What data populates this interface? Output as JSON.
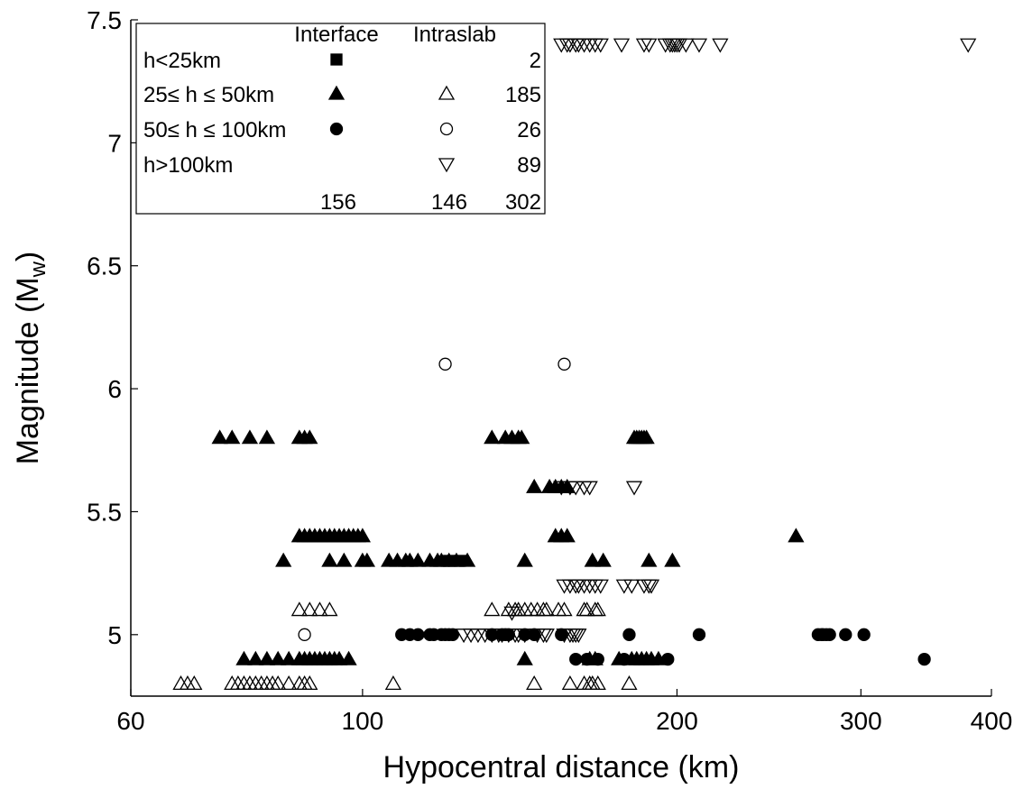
{
  "chart_data": {
    "type": "scatter",
    "xlabel": "Hypocentral distance (km)",
    "ylabel_main": "Magnitude (M",
    "ylabel_sub": "w",
    "ylabel_end": ")",
    "x_scale": "log",
    "xlim": [
      60,
      400
    ],
    "ylim": [
      4.75,
      7.5
    ],
    "x_ticks": [
      60,
      100,
      200,
      300,
      400
    ],
    "x_tick_labels": [
      "60",
      "100",
      "200",
      "300",
      "400"
    ],
    "y_ticks": [
      5,
      5.5,
      6,
      6.5,
      7,
      7.5
    ],
    "y_tick_labels": [
      "5",
      "5.5",
      "6",
      "6.5",
      "7",
      "7.5"
    ],
    "grid": false,
    "legend": {
      "position": "top-left",
      "col_headers": [
        "Interface",
        "Intraslab"
      ],
      "rows": [
        {
          "label": "h<25km",
          "interface_marker": "filled-square",
          "intraslab_marker": "",
          "count": "2"
        },
        {
          "label": "25≤ h ≤ 50km",
          "interface_marker": "filled-triangle-up",
          "intraslab_marker": "open-triangle-up",
          "count": "185"
        },
        {
          "label": "50≤ h ≤ 100km",
          "interface_marker": "filled-circle",
          "intraslab_marker": "open-circle",
          "count": "26"
        },
        {
          "label": "h>100km",
          "interface_marker": "",
          "intraslab_marker": "open-triangle-down",
          "count": "89"
        }
      ],
      "totals": [
        "156",
        "146",
        "302"
      ]
    },
    "series": [
      {
        "marker": "filled-triangle-up",
        "points": [
          [
            73,
            5.8
          ],
          [
            75,
            5.8
          ],
          [
            78,
            5.8
          ],
          [
            81,
            5.8
          ],
          [
            87,
            5.8
          ],
          [
            88,
            5.8
          ],
          [
            89,
            5.8
          ],
          [
            133,
            5.8
          ],
          [
            137,
            5.8
          ],
          [
            139,
            5.8
          ],
          [
            141,
            5.8
          ],
          [
            142,
            5.8
          ],
          [
            182,
            5.8
          ],
          [
            183,
            5.8
          ],
          [
            184,
            5.8
          ],
          [
            185,
            5.8
          ],
          [
            186,
            5.8
          ],
          [
            187,
            5.8
          ],
          [
            146,
            5.6
          ],
          [
            151,
            5.6
          ],
          [
            153,
            5.6
          ],
          [
            155,
            5.6
          ],
          [
            157,
            5.6
          ],
          [
            87,
            5.4
          ],
          [
            88,
            5.4
          ],
          [
            89,
            5.4
          ],
          [
            90,
            5.4
          ],
          [
            91,
            5.4
          ],
          [
            92,
            5.4
          ],
          [
            93,
            5.4
          ],
          [
            94,
            5.4
          ],
          [
            95,
            5.4
          ],
          [
            96,
            5.4
          ],
          [
            97,
            5.4
          ],
          [
            98,
            5.4
          ],
          [
            99,
            5.4
          ],
          [
            100,
            5.4
          ],
          [
            153,
            5.4
          ],
          [
            155,
            5.4
          ],
          [
            157,
            5.4
          ],
          [
            260,
            5.4
          ],
          [
            84,
            5.3
          ],
          [
            93,
            5.3
          ],
          [
            96,
            5.3
          ],
          [
            100,
            5.3
          ],
          [
            101,
            5.3
          ],
          [
            106,
            5.3
          ],
          [
            108,
            5.3
          ],
          [
            110,
            5.3
          ],
          [
            111,
            5.3
          ],
          [
            113,
            5.3
          ],
          [
            116,
            5.3
          ],
          [
            118,
            5.3
          ],
          [
            119,
            5.3
          ],
          [
            121,
            5.3
          ],
          [
            123,
            5.3
          ],
          [
            126,
            5.3
          ],
          [
            143,
            5.3
          ],
          [
            166,
            5.3
          ],
          [
            170,
            5.3
          ],
          [
            188,
            5.3
          ],
          [
            198,
            5.3
          ],
          [
            77,
            4.9
          ],
          [
            79,
            4.9
          ],
          [
            81,
            4.9
          ],
          [
            83,
            4.9
          ],
          [
            85,
            4.9
          ],
          [
            87,
            4.9
          ],
          [
            88,
            4.9
          ],
          [
            89,
            4.9
          ],
          [
            90,
            4.9
          ],
          [
            91,
            4.9
          ],
          [
            92,
            4.9
          ],
          [
            93,
            4.9
          ],
          [
            94,
            4.9
          ],
          [
            95,
            4.9
          ],
          [
            97,
            4.9
          ],
          [
            143,
            4.9
          ],
          [
            165,
            4.9
          ],
          [
            167,
            4.9
          ],
          [
            176,
            4.9
          ],
          [
            181,
            4.9
          ],
          [
            183,
            4.9
          ],
          [
            185,
            4.9
          ],
          [
            187,
            4.9
          ],
          [
            189,
            4.9
          ],
          [
            192,
            4.9
          ]
        ]
      },
      {
        "marker": "filled-square",
        "points": [
          [
            121,
            5.3
          ],
          [
            124,
            5.3
          ]
        ]
      },
      {
        "marker": "filled-circle",
        "points": [
          [
            109,
            5
          ],
          [
            111,
            5
          ],
          [
            113,
            5
          ],
          [
            116,
            5
          ],
          [
            117,
            5
          ],
          [
            119,
            5
          ],
          [
            120,
            5
          ],
          [
            121,
            5
          ],
          [
            122,
            5
          ],
          [
            133,
            5
          ],
          [
            136,
            5
          ],
          [
            137,
            5
          ],
          [
            138,
            5
          ],
          [
            143,
            5
          ],
          [
            146,
            5
          ],
          [
            155,
            5
          ],
          [
            180,
            5
          ],
          [
            210,
            5
          ],
          [
            273,
            5
          ],
          [
            275,
            5
          ],
          [
            276,
            5
          ],
          [
            278,
            5
          ],
          [
            280,
            5
          ],
          [
            290,
            5
          ],
          [
            302,
            5
          ],
          [
            160,
            4.9
          ],
          [
            164,
            4.9
          ],
          [
            168,
            4.9
          ],
          [
            178,
            4.9
          ],
          [
            196,
            4.9
          ],
          [
            345,
            4.9
          ]
        ]
      },
      {
        "marker": "open-triangle-up",
        "points": [
          [
            67,
            4.8
          ],
          [
            68,
            4.8
          ],
          [
            69,
            4.8
          ],
          [
            75,
            4.8
          ],
          [
            76,
            4.8
          ],
          [
            77,
            4.8
          ],
          [
            78,
            4.8
          ],
          [
            79,
            4.8
          ],
          [
            80,
            4.8
          ],
          [
            81,
            4.8
          ],
          [
            82,
            4.8
          ],
          [
            83,
            4.8
          ],
          [
            85,
            4.8
          ],
          [
            87,
            4.8
          ],
          [
            88,
            4.8
          ],
          [
            89,
            4.8
          ],
          [
            107,
            4.8
          ],
          [
            146,
            4.8
          ],
          [
            158,
            4.8
          ],
          [
            163,
            4.8
          ],
          [
            165,
            4.8
          ],
          [
            166,
            4.8
          ],
          [
            168,
            4.8
          ],
          [
            180,
            4.8
          ],
          [
            87,
            5.1
          ],
          [
            89,
            5.1
          ],
          [
            91,
            5.1
          ],
          [
            93,
            5.1
          ],
          [
            133,
            5.1
          ],
          [
            138,
            5.1
          ],
          [
            140,
            5.1
          ],
          [
            141,
            5.1
          ],
          [
            143,
            5.1
          ],
          [
            145,
            5.1
          ],
          [
            147,
            5.1
          ],
          [
            149,
            5.1
          ],
          [
            150,
            5.1
          ],
          [
            154,
            5.1
          ],
          [
            156,
            5.1
          ],
          [
            163,
            5.1
          ],
          [
            164,
            5.1
          ],
          [
            167,
            5.1
          ],
          [
            168,
            5.1
          ]
        ]
      },
      {
        "marker": "open-circle",
        "points": [
          [
            88,
            5
          ],
          [
            120,
            6.1
          ],
          [
            156,
            6.1
          ]
        ]
      },
      {
        "marker": "open-triangle-down",
        "points": [
          [
            155,
            7.4
          ],
          [
            157,
            7.4
          ],
          [
            158,
            7.4
          ],
          [
            160,
            7.4
          ],
          [
            161,
            7.4
          ],
          [
            163,
            7.4
          ],
          [
            165,
            7.4
          ],
          [
            167,
            7.4
          ],
          [
            169,
            7.4
          ],
          [
            177,
            7.4
          ],
          [
            186,
            7.4
          ],
          [
            188,
            7.4
          ],
          [
            195,
            7.4
          ],
          [
            197,
            7.4
          ],
          [
            198,
            7.4
          ],
          [
            199,
            7.4
          ],
          [
            200,
            7.4
          ],
          [
            201,
            7.4
          ],
          [
            204,
            7.4
          ],
          [
            210,
            7.4
          ],
          [
            220,
            7.4
          ],
          [
            380,
            7.4
          ],
          [
            155,
            5.6
          ],
          [
            158,
            5.6
          ],
          [
            160,
            5.6
          ],
          [
            163,
            5.6
          ],
          [
            165,
            5.6
          ],
          [
            182,
            5.6
          ],
          [
            156,
            5.2
          ],
          [
            158,
            5.2
          ],
          [
            160,
            5.2
          ],
          [
            161,
            5.2
          ],
          [
            163,
            5.2
          ],
          [
            165,
            5.2
          ],
          [
            167,
            5.2
          ],
          [
            169,
            5.2
          ],
          [
            178,
            5.2
          ],
          [
            181,
            5.2
          ],
          [
            186,
            5.2
          ],
          [
            188,
            5.2
          ],
          [
            189,
            5.2
          ],
          [
            125,
            5
          ],
          [
            127,
            5
          ],
          [
            129,
            5
          ],
          [
            131,
            5
          ],
          [
            133,
            5
          ],
          [
            135,
            5
          ],
          [
            136,
            5
          ],
          [
            138,
            5
          ],
          [
            140,
            5
          ],
          [
            141,
            5
          ],
          [
            143,
            5
          ],
          [
            147,
            5
          ],
          [
            149,
            5
          ],
          [
            150,
            5
          ],
          [
            156,
            5
          ],
          [
            158,
            5
          ],
          [
            159,
            5
          ],
          [
            160,
            5
          ],
          [
            161,
            5
          ],
          [
            139,
            5.09
          ]
        ]
      }
    ]
  }
}
